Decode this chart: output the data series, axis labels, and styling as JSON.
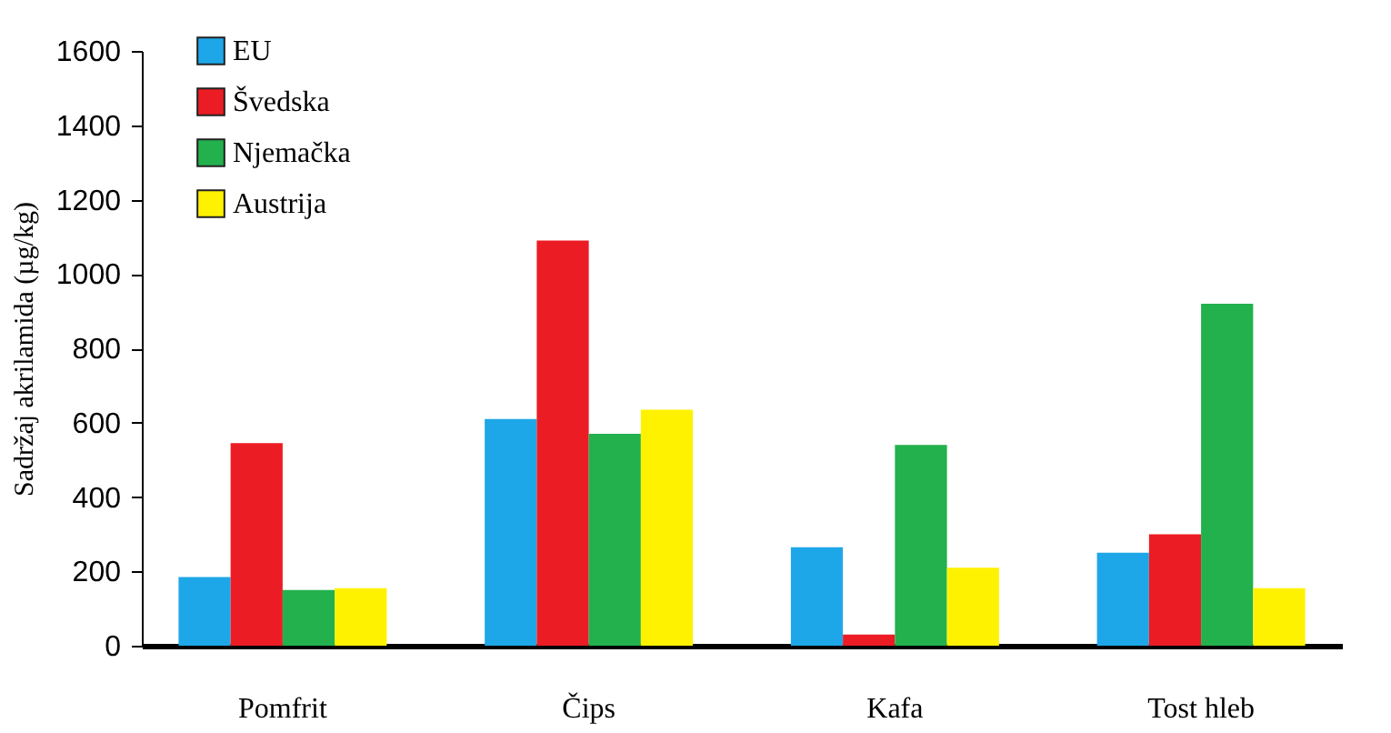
{
  "chart_data": {
    "type": "bar",
    "ylabel": "Sadržaj akrilamida (µg/kg)",
    "categories": [
      "Pomfrit",
      "Čips",
      "Kafa",
      "Tost hleb"
    ],
    "series": [
      {
        "name": "EU",
        "color": "#1ea7e8",
        "values": [
          185,
          610,
          265,
          250
        ]
      },
      {
        "name": "Švedska",
        "color": "#ec1c24",
        "values": [
          545,
          1090,
          30,
          300
        ]
      },
      {
        "name": "Njemačka",
        "color": "#22b14c",
        "values": [
          150,
          570,
          540,
          920
        ]
      },
      {
        "name": "Austrija",
        "color": "#fff200",
        "values": [
          155,
          635,
          210,
          155
        ]
      }
    ],
    "ylim": [
      0,
      1600
    ],
    "yticks": [
      0,
      200,
      400,
      600,
      800,
      1000,
      1200,
      1400,
      1600
    ],
    "grid": false,
    "legend": "top left"
  }
}
